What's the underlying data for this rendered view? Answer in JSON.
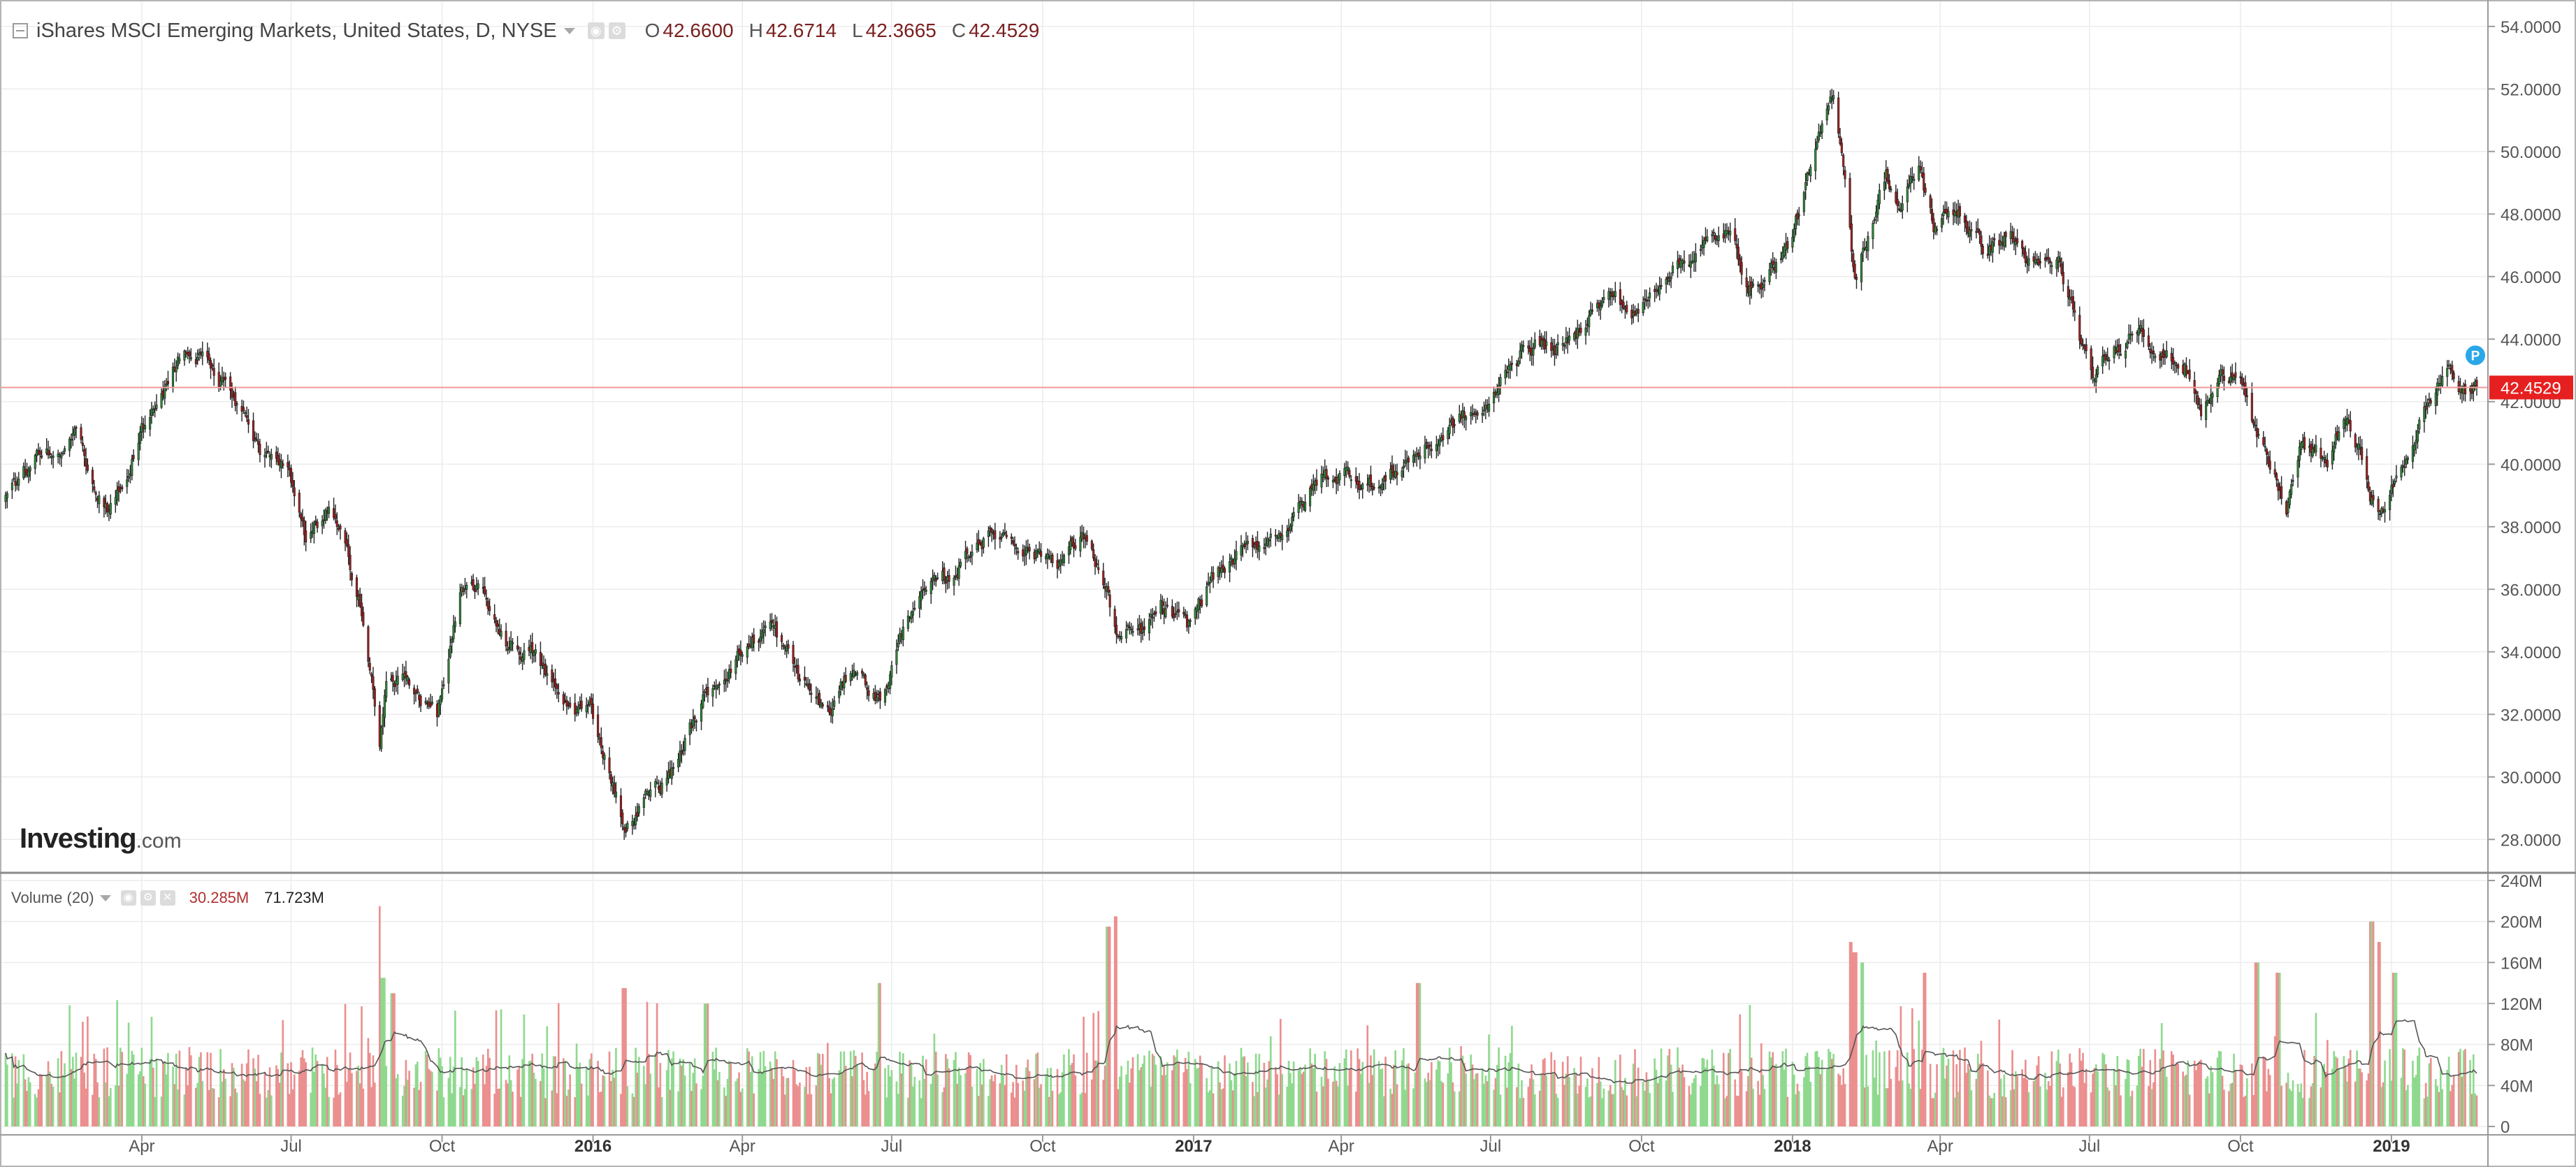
{
  "header": {
    "symbol_title": "iShares MSCI Emerging Markets, United States, D, NYSE",
    "ohlc": {
      "open_label": "O",
      "open": "42.6600",
      "high_label": "H",
      "high": "42.6714",
      "low_label": "L",
      "low": "42.3665",
      "close_label": "C",
      "close": "42.4529"
    }
  },
  "volume_legend": {
    "title": "Volume (20)",
    "last": "30.285M",
    "ma": "71.723M"
  },
  "watermark": {
    "brand": "Investing",
    "suffix": ".com"
  },
  "colors": {
    "up": "#2e9e3a",
    "down": "#c21a1a",
    "vol_up": "#8fd98f",
    "vol_down": "#eb8f8f",
    "price_line": "#f19a9a",
    "grid": "#ececec",
    "last_badge": "#e62020",
    "p_marker": "#2aa7e8"
  },
  "chart_data": [
    {
      "type": "candlestick",
      "title": "iShares MSCI Emerging Markets, United States, D, NYSE",
      "ylim": [
        27,
        54.8
      ],
      "y_axis_position": "right",
      "y_ticks": [
        "28.0000",
        "30.0000",
        "32.0000",
        "34.0000",
        "36.0000",
        "38.0000",
        "40.0000",
        "42.0000",
        "44.0000",
        "46.0000",
        "48.0000",
        "50.0000",
        "52.0000",
        "54.0000"
      ],
      "x_ticks": [
        {
          "date": "2015-04-01",
          "label": "Apr",
          "bold": false
        },
        {
          "date": "2015-07-01",
          "label": "Jul",
          "bold": false
        },
        {
          "date": "2015-10-01",
          "label": "Oct",
          "bold": false
        },
        {
          "date": "2016-01-01",
          "label": "2016",
          "bold": true
        },
        {
          "date": "2016-04-01",
          "label": "Apr",
          "bold": false
        },
        {
          "date": "2016-07-01",
          "label": "Jul",
          "bold": false
        },
        {
          "date": "2016-10-01",
          "label": "Oct",
          "bold": false
        },
        {
          "date": "2017-01-01",
          "label": "2017",
          "bold": true
        },
        {
          "date": "2017-04-01",
          "label": "Apr",
          "bold": false
        },
        {
          "date": "2017-07-01",
          "label": "Jul",
          "bold": false
        },
        {
          "date": "2017-10-01",
          "label": "Oct",
          "bold": false
        },
        {
          "date": "2018-01-01",
          "label": "2018",
          "bold": true
        },
        {
          "date": "2018-04-01",
          "label": "Apr",
          "bold": false
        },
        {
          "date": "2018-07-01",
          "label": "Jul",
          "bold": false
        },
        {
          "date": "2018-10-01",
          "label": "Oct",
          "bold": false
        },
        {
          "date": "2019-01-01",
          "label": "2019",
          "bold": true
        }
      ],
      "x_range": [
        "2015-01-08",
        "2019-02-22"
      ],
      "last_price": 42.4529,
      "last_price_label": "42.4529",
      "price_marker_label": "P",
      "grid": true,
      "series_close_keypoints": [
        [
          "2015-01-08",
          38.9
        ],
        [
          "2015-01-28",
          40.3
        ],
        [
          "2015-02-20",
          40.9
        ],
        [
          "2015-03-12",
          38.5
        ],
        [
          "2015-03-25",
          40.2
        ],
        [
          "2015-04-27",
          43.9
        ],
        [
          "2015-05-22",
          42.5
        ],
        [
          "2015-06-12",
          40.3
        ],
        [
          "2015-06-30",
          39.5
        ],
        [
          "2015-07-10",
          37.4
        ],
        [
          "2015-07-24",
          38.6
        ],
        [
          "2015-08-12",
          35.8
        ],
        [
          "2015-08-24",
          31.1
        ],
        [
          "2015-08-28",
          32.9
        ],
        [
          "2015-09-10",
          33.1
        ],
        [
          "2015-09-28",
          32.0
        ],
        [
          "2015-10-12",
          35.6
        ],
        [
          "2015-10-22",
          36.1
        ],
        [
          "2015-11-10",
          34.3
        ],
        [
          "2015-11-26",
          33.9
        ],
        [
          "2015-12-14",
          32.3
        ],
        [
          "2015-12-31",
          32.1
        ],
        [
          "2016-01-13",
          29.9
        ],
        [
          "2016-01-21",
          28.3
        ],
        [
          "2016-02-03",
          29.4
        ],
        [
          "2016-02-16",
          30.0
        ],
        [
          "2016-03-08",
          32.4
        ],
        [
          "2016-03-24",
          33.6
        ],
        [
          "2016-04-18",
          34.9
        ],
        [
          "2016-05-05",
          33.2
        ],
        [
          "2016-05-24",
          32.0
        ],
        [
          "2016-06-08",
          33.6
        ],
        [
          "2016-06-24",
          32.4
        ],
        [
          "2016-07-14",
          35.6
        ],
        [
          "2016-08-05",
          36.3
        ],
        [
          "2016-08-22",
          37.6
        ],
        [
          "2016-09-08",
          37.8
        ],
        [
          "2016-09-26",
          37.2
        ],
        [
          "2016-10-12",
          37.0
        ],
        [
          "2016-10-28",
          37.7
        ],
        [
          "2016-11-09",
          35.9
        ],
        [
          "2016-11-16",
          34.4
        ],
        [
          "2016-12-02",
          34.6
        ],
        [
          "2016-12-12",
          35.4
        ],
        [
          "2016-12-28",
          34.7
        ],
        [
          "2017-01-12",
          36.4
        ],
        [
          "2017-02-08",
          37.4
        ],
        [
          "2017-03-02",
          38.2
        ],
        [
          "2017-03-20",
          39.6
        ],
        [
          "2017-04-05",
          39.7
        ],
        [
          "2017-04-25",
          39.3
        ],
        [
          "2017-05-12",
          40.2
        ],
        [
          "2017-05-26",
          40.6
        ],
        [
          "2017-06-14",
          41.5
        ],
        [
          "2017-06-30",
          41.7
        ],
        [
          "2017-07-12",
          43.3
        ],
        [
          "2017-07-28",
          43.9
        ],
        [
          "2017-08-14",
          43.6
        ],
        [
          "2017-08-30",
          44.9
        ],
        [
          "2017-09-14",
          45.4
        ],
        [
          "2017-09-28",
          44.7
        ],
        [
          "2017-10-16",
          46.2
        ],
        [
          "2017-11-07",
          46.9
        ],
        [
          "2017-11-22",
          47.4
        ],
        [
          "2017-12-08",
          45.6
        ],
        [
          "2017-12-29",
          46.9
        ],
        [
          "2018-01-12",
          49.3
        ],
        [
          "2018-01-26",
          51.9
        ],
        [
          "2018-02-02",
          49.4
        ],
        [
          "2018-02-08",
          45.9
        ],
        [
          "2018-02-16",
          47.4
        ],
        [
          "2018-02-27",
          49.3
        ],
        [
          "2018-03-08",
          48.1
        ],
        [
          "2018-03-19",
          49.5
        ],
        [
          "2018-03-28",
          47.6
        ],
        [
          "2018-04-12",
          48.2
        ],
        [
          "2018-04-27",
          46.9
        ],
        [
          "2018-05-14",
          47.3
        ],
        [
          "2018-05-29",
          46.2
        ],
        [
          "2018-06-12",
          46.4
        ],
        [
          "2018-06-22",
          44.7
        ],
        [
          "2018-07-02",
          42.6
        ],
        [
          "2018-07-16",
          43.6
        ],
        [
          "2018-08-01",
          44.6
        ],
        [
          "2018-08-13",
          43.5
        ],
        [
          "2018-08-28",
          43.2
        ],
        [
          "2018-09-07",
          41.6
        ],
        [
          "2018-09-20",
          42.8
        ],
        [
          "2018-10-01",
          43.2
        ],
        [
          "2018-10-11",
          40.8
        ],
        [
          "2018-10-29",
          38.6
        ],
        [
          "2018-11-07",
          40.6
        ],
        [
          "2018-11-23",
          40.0
        ],
        [
          "2018-12-03",
          41.6
        ],
        [
          "2018-12-14",
          40.1
        ],
        [
          "2018-12-24",
          38.3
        ],
        [
          "2019-01-04",
          39.4
        ],
        [
          "2019-01-18",
          41.3
        ],
        [
          "2019-02-05",
          43.2
        ],
        [
          "2019-02-13",
          42.2
        ],
        [
          "2019-02-22",
          42.45
        ]
      ]
    },
    {
      "type": "bar",
      "title": "Volume (20)",
      "ylim": [
        0,
        240000000
      ],
      "y_ticks": [
        "0",
        "40M",
        "80M",
        "120M",
        "160M",
        "200M",
        "240M"
      ],
      "moving_average_period": 20,
      "typical_volume": 50000000,
      "volume_spikes": [
        [
          "2015-08-24",
          215000000
        ],
        [
          "2015-08-26",
          145000000
        ],
        [
          "2015-09-01",
          130000000
        ],
        [
          "2016-01-20",
          135000000
        ],
        [
          "2016-06-24",
          140000000
        ],
        [
          "2016-11-10",
          195000000
        ],
        [
          "2016-11-14",
          205000000
        ],
        [
          "2016-03-10",
          120000000
        ],
        [
          "2017-05-18",
          140000000
        ],
        [
          "2018-02-05",
          180000000
        ],
        [
          "2018-02-08",
          170000000
        ],
        [
          "2018-02-12",
          160000000
        ],
        [
          "2018-03-23",
          150000000
        ],
        [
          "2018-10-11",
          160000000
        ],
        [
          "2018-10-24",
          150000000
        ],
        [
          "2018-12-20",
          200000000
        ],
        [
          "2018-12-24",
          180000000
        ],
        [
          "2019-01-03",
          150000000
        ]
      ],
      "last_volume": 30285000,
      "last_ma": 71723000
    }
  ]
}
